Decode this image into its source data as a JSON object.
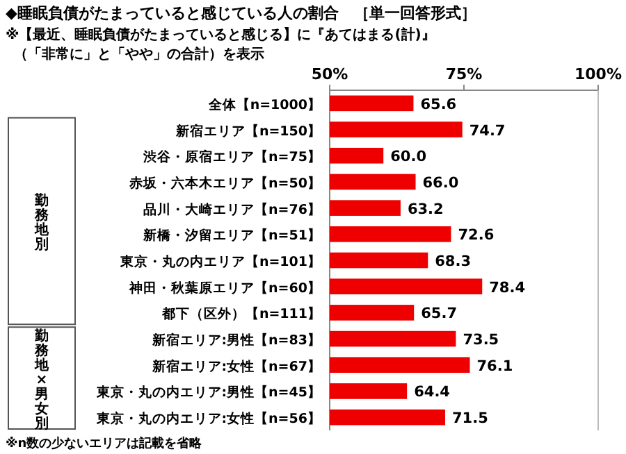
{
  "chart_data": {
    "type": "bar",
    "orientation": "horizontal",
    "title": "◆睡眠負債がたまっていると感じている人の割合　［単一回答形式］",
    "subtitle": "※【最近、睡眠負債がたまっていると感じる】に『あてはまる(計)』",
    "categories": [
      "全体【n=1000】",
      "新宿エリア【n=150】",
      "渋谷・原宿エリア【n=75】",
      "赤坂・六本木エリア【n=50】",
      "品川・大崎エリア【n=76】",
      "新橋・汐留エリア【n=51】",
      "東京・丸の内エリア【n=101】",
      "神田・秋葉原エリア【n=60】",
      "都下（区外）【n=111】",
      "新宿エリア:男性【n=83】",
      "新宿エリア:女性【n=67】",
      "東京・丸の内エリア:男性【n=45】",
      "東京・丸の内エリア:女性【n=56】"
    ],
    "values": [
      65.6,
      74.7,
      60.0,
      66.0,
      63.2,
      72.6,
      68.3,
      78.4,
      65.7,
      73.5,
      76.1,
      64.4,
      71.5
    ],
    "value_labels": [
      "65.6",
      "74.7",
      "60.0",
      "66.0",
      "63.2",
      "72.6",
      "68.3",
      "78.4",
      "65.7",
      "73.5",
      "76.1",
      "64.4",
      "71.5"
    ],
    "color": "#ee0000",
    "xlim": [
      50,
      100
    ],
    "xticks": [
      {
        "value": 50,
        "label": "50%"
      },
      {
        "value": 75,
        "label": "75%"
      },
      {
        "value": 100,
        "label": "100%"
      }
    ],
    "annotations": [
      "（「非常に」と「やや」の合計）を表示",
      "勤務地別",
      "勤務地×男女別",
      "※n数の少ないエリアは記載を省略"
    ]
  }
}
